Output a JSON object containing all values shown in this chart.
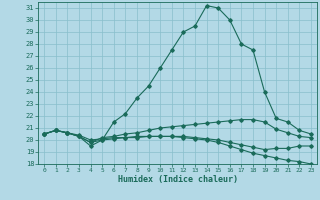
{
  "xlabel": "Humidex (Indice chaleur)",
  "bg_color": "#b3d9e6",
  "grid_color": "#89bfcc",
  "line_color": "#1a6b5a",
  "xlim": [
    -0.5,
    23.5
  ],
  "ylim": [
    18,
    31.5
  ],
  "yticks": [
    18,
    19,
    20,
    21,
    22,
    23,
    24,
    25,
    26,
    27,
    28,
    29,
    30,
    31
  ],
  "xticks": [
    0,
    1,
    2,
    3,
    4,
    5,
    6,
    7,
    8,
    9,
    10,
    11,
    12,
    13,
    14,
    15,
    16,
    17,
    18,
    19,
    20,
    21,
    22,
    23
  ],
  "curves": [
    {
      "x": [
        0,
        1,
        2,
        3,
        4,
        5,
        6,
        7,
        8,
        9,
        10,
        11,
        12,
        13,
        14,
        15,
        16,
        17,
        18,
        19,
        20,
        21,
        22,
        23
      ],
      "y": [
        20.5,
        20.8,
        20.6,
        20.3,
        19.8,
        20.0,
        21.5,
        22.2,
        23.5,
        24.5,
        26.0,
        27.5,
        29.0,
        29.5,
        31.2,
        31.0,
        30.0,
        28.0,
        27.5,
        24.0,
        21.8,
        21.5,
        20.8,
        20.5
      ]
    },
    {
      "x": [
        0,
        1,
        2,
        3,
        4,
        5,
        6,
        7,
        8,
        9,
        10,
        11,
        12,
        13,
        14,
        15,
        16,
        17,
        18,
        19,
        20,
        21,
        22,
        23
      ],
      "y": [
        20.5,
        20.8,
        20.6,
        20.3,
        19.8,
        20.2,
        20.3,
        20.5,
        20.6,
        20.8,
        21.0,
        21.1,
        21.2,
        21.3,
        21.4,
        21.5,
        21.6,
        21.7,
        21.7,
        21.5,
        20.9,
        20.6,
        20.3,
        20.2
      ]
    },
    {
      "x": [
        0,
        1,
        2,
        3,
        4,
        5,
        6,
        7,
        8,
        9,
        10,
        11,
        12,
        13,
        14,
        15,
        16,
        17,
        18,
        19,
        20,
        21,
        22,
        23
      ],
      "y": [
        20.5,
        20.8,
        20.6,
        20.4,
        20.0,
        20.1,
        20.2,
        20.2,
        20.3,
        20.3,
        20.3,
        20.3,
        20.2,
        20.1,
        20.0,
        19.8,
        19.5,
        19.2,
        18.9,
        18.7,
        18.5,
        18.3,
        18.2,
        18.0
      ]
    },
    {
      "x": [
        0,
        1,
        2,
        3,
        4,
        5,
        6,
        7,
        8,
        9,
        10,
        11,
        12,
        13,
        14,
        15,
        16,
        17,
        18,
        19,
        20,
        21,
        22,
        23
      ],
      "y": [
        20.5,
        20.8,
        20.6,
        20.3,
        19.5,
        20.0,
        20.1,
        20.2,
        20.2,
        20.3,
        20.3,
        20.3,
        20.3,
        20.2,
        20.1,
        20.0,
        19.8,
        19.6,
        19.4,
        19.2,
        19.3,
        19.3,
        19.5,
        19.5
      ]
    }
  ]
}
